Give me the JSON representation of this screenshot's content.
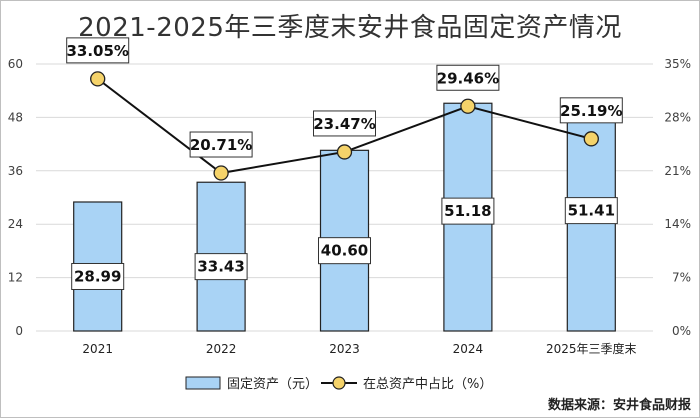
{
  "chart_data": {
    "type": "bar+line",
    "title": "2021-2025年三季度末安井食品固定资产情况",
    "categories": [
      "2021",
      "2022",
      "2023",
      "2024",
      "2025年三季度末"
    ],
    "series": [
      {
        "name": "固定资产（元）",
        "type": "bar",
        "axis": "left",
        "values": [
          28.99,
          33.43,
          40.6,
          51.18,
          51.41
        ],
        "labels": [
          "28.99",
          "33.43",
          "40.60",
          "51.18",
          "51.41"
        ],
        "color": "#a9d3f5"
      },
      {
        "name": "在总资产中占比（%）",
        "type": "line",
        "axis": "right",
        "values": [
          33.05,
          20.71,
          23.47,
          29.46,
          25.19
        ],
        "labels": [
          "33.05%",
          "20.71%",
          "23.47%",
          "29.46%",
          "25.19%"
        ],
        "color": "#f5d36a"
      }
    ],
    "left_axis": {
      "min": 0,
      "max": 60,
      "ticks": [
        "0",
        "12",
        "24",
        "36",
        "48",
        "60"
      ],
      "tick_values": [
        0,
        12,
        24,
        36,
        48,
        60
      ]
    },
    "right_axis": {
      "min": 0,
      "max": 35,
      "ticks": [
        "0%",
        "7%",
        "14%",
        "21%",
        "28%",
        "35%"
      ],
      "tick_values": [
        0,
        7,
        14,
        21,
        28,
        35
      ]
    },
    "legend_position": "bottom",
    "source": "数据来源：安井食品财报"
  }
}
